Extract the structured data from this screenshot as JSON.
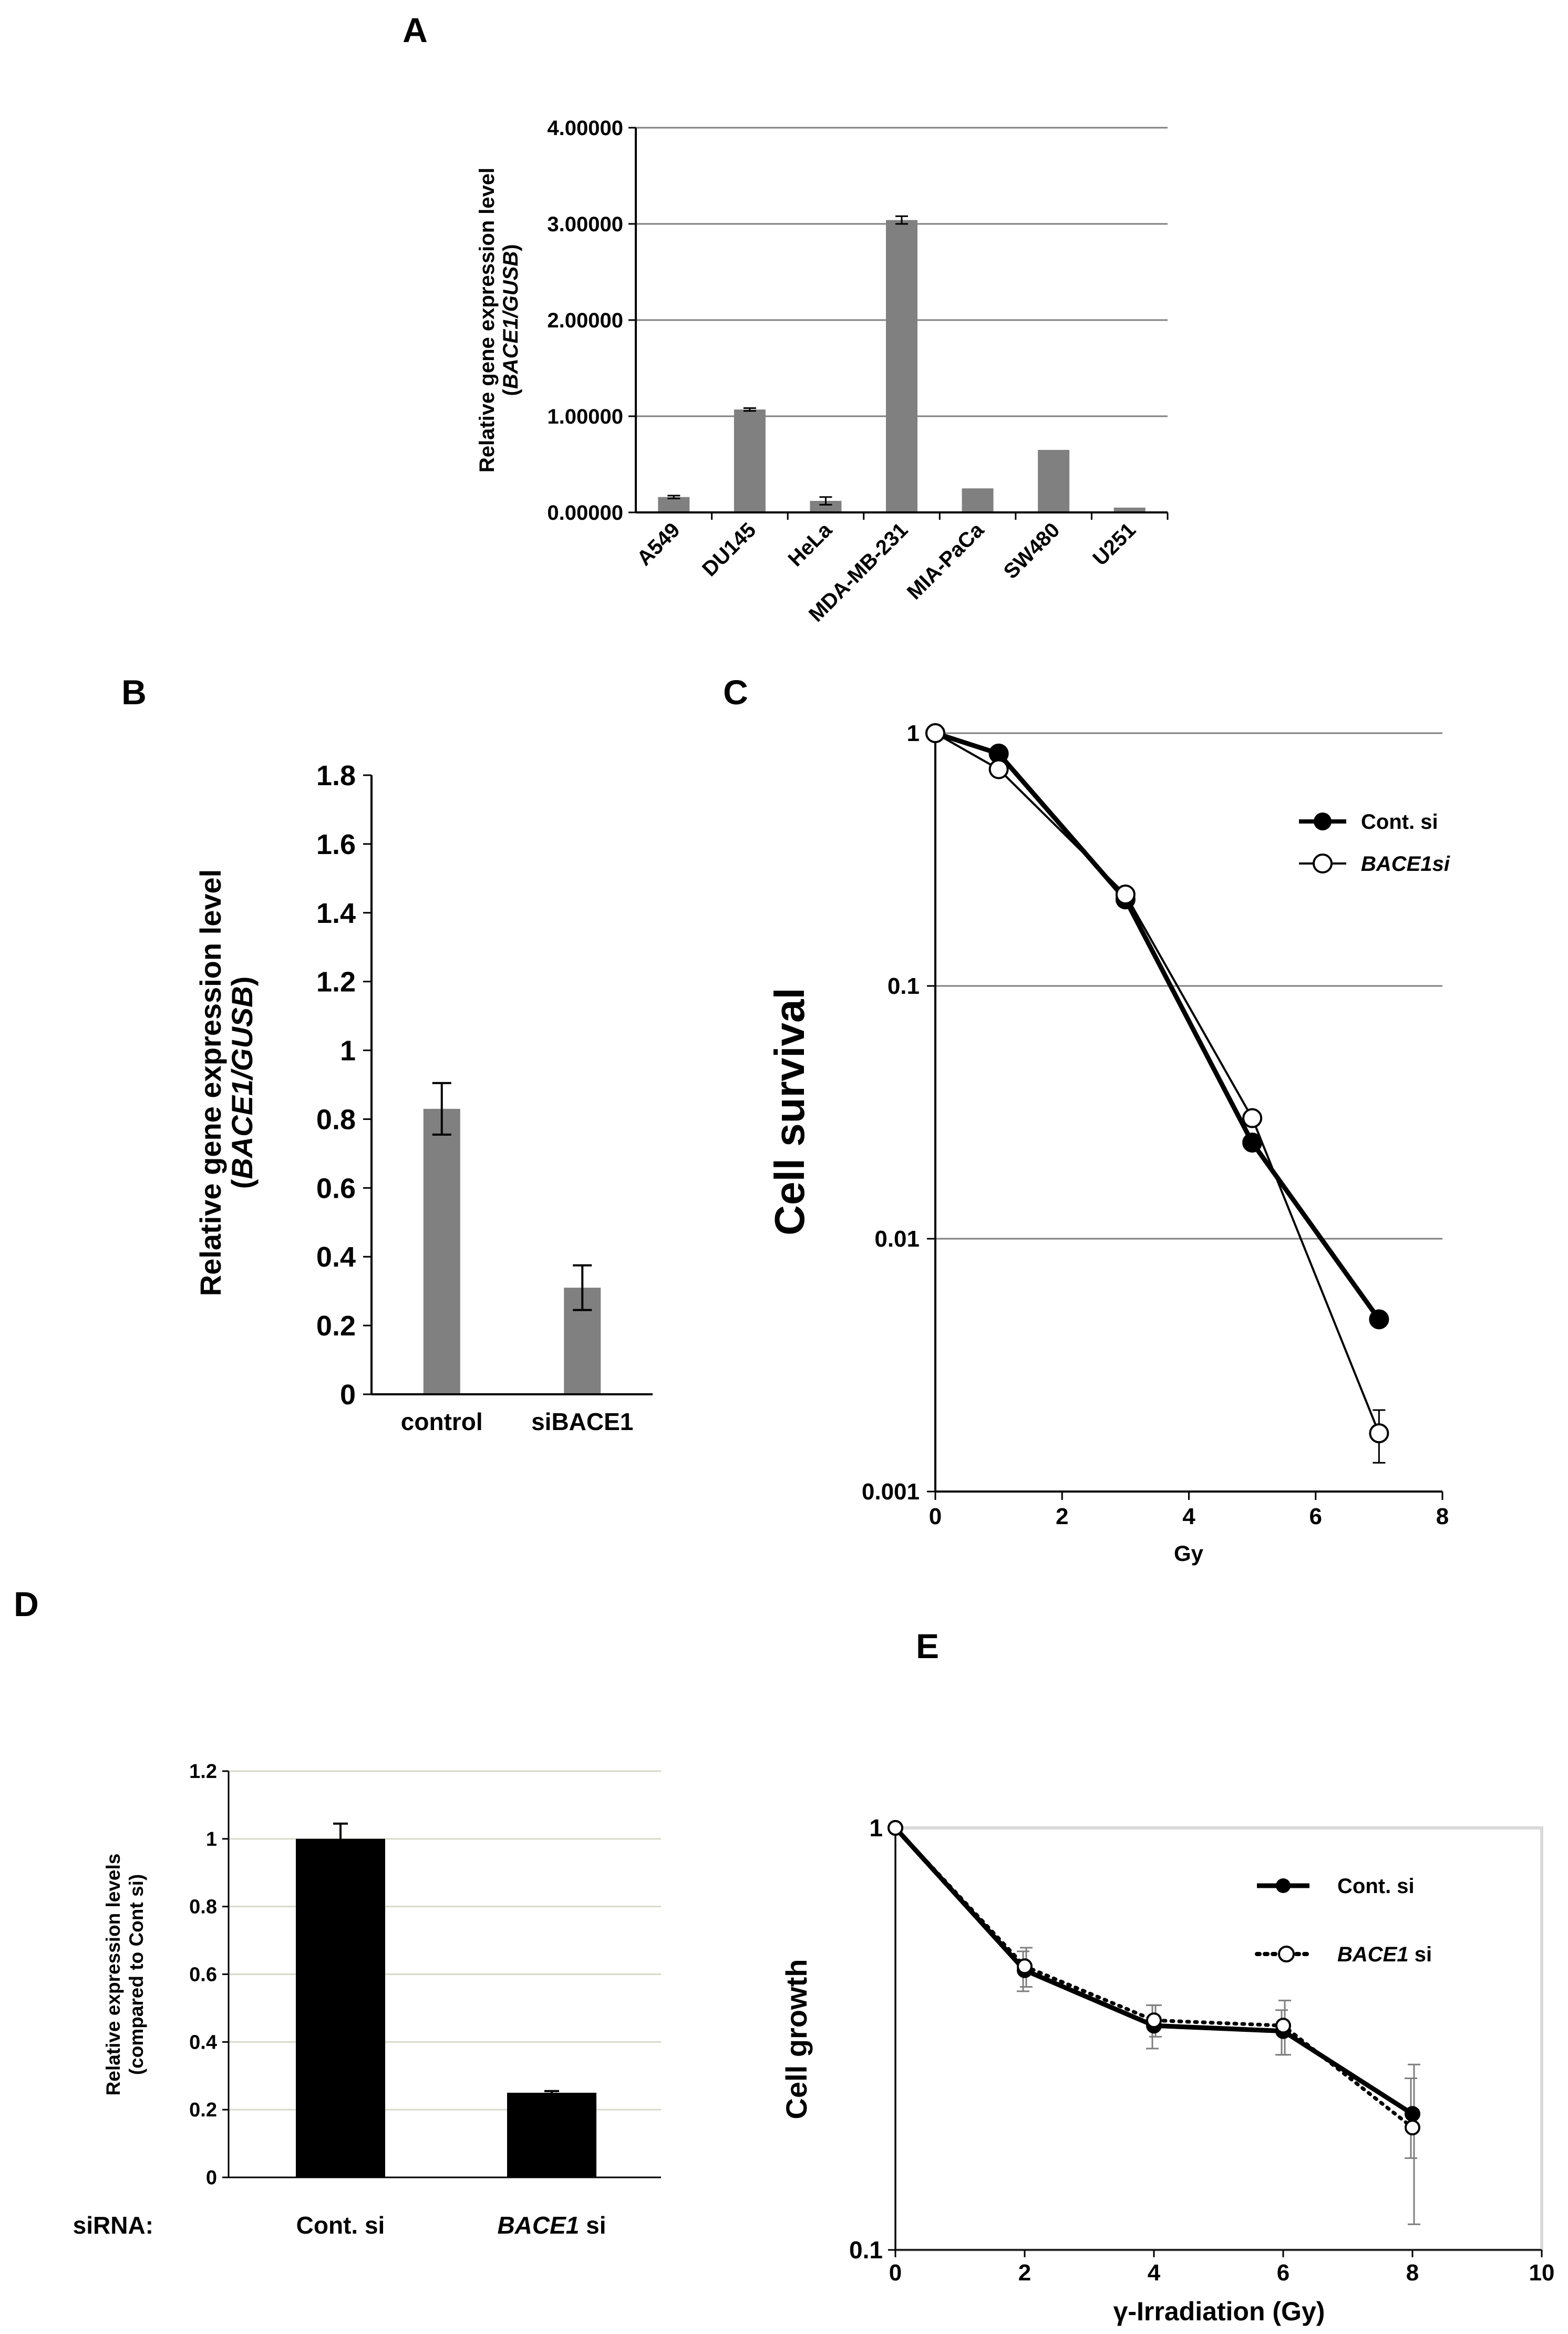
{
  "panel_labels": {
    "A": "A",
    "B": "B",
    "C": "C",
    "D": "D",
    "E": "E"
  },
  "colors": {
    "gray_bar": "#808080",
    "black": "#000000",
    "grid": "#808080",
    "grid_light": "#d9d9c8",
    "frame": "#d9d9d9",
    "error_gray": "#7f7f7f"
  },
  "chart_data": [
    {
      "panel": "A",
      "type": "bar",
      "title": "",
      "categories": [
        "A549",
        "DU145",
        "HeLa",
        "MDA-MB-231",
        "MIA-PaCa",
        "SW480",
        "U251"
      ],
      "values": [
        0.16,
        1.07,
        0.12,
        3.04,
        0.25,
        0.65,
        0.05
      ],
      "errors": [
        0.015,
        0.015,
        0.04,
        0.04,
        0,
        0,
        0
      ],
      "ylabel_line1": "Relative gene expression level",
      "ylabel_line2_open": "(",
      "ylabel_line2_italic": "BACE1/GUSB",
      "ylabel_line2_close": ")",
      "ylim": [
        0,
        4
      ],
      "yticks": [
        "0.00000",
        "1.00000",
        "2.00000",
        "3.00000",
        "4.00000"
      ],
      "grid": true
    },
    {
      "panel": "B",
      "type": "bar",
      "categories": [
        "control",
        "siBACE1"
      ],
      "values": [
        0.83,
        0.31
      ],
      "errors": [
        0.075,
        0.065
      ],
      "ylabel_line1": "Relative gene expression level",
      "ylabel_line2_open": "(",
      "ylabel_line2_italic": "BACE1/GUSB",
      "ylabel_line2_close": ")",
      "ylim": [
        0,
        1.8
      ],
      "yticks": [
        "0",
        "0.2",
        "0.4",
        "0.6",
        "0.8",
        "1",
        "1.2",
        "1.4",
        "1.6",
        "1.8"
      ],
      "grid": false
    },
    {
      "panel": "C",
      "type": "line",
      "yscale": "log",
      "xlabel": "Gy",
      "ylabel": "Cell survival",
      "xlim": [
        0,
        8
      ],
      "xticks": [
        "0",
        "2",
        "4",
        "6",
        "8"
      ],
      "ylim": [
        0.001,
        1
      ],
      "yticks": [
        "0.001",
        "0.01",
        "0.1",
        "1"
      ],
      "series": [
        {
          "name": "Cont. si",
          "x": [
            0,
            1,
            3,
            5,
            7
          ],
          "y": [
            1,
            0.83,
            0.22,
            0.024,
            0.0048
          ],
          "marker": "filled"
        },
        {
          "name": "BACE1si",
          "x": [
            0,
            1,
            3,
            5,
            7
          ],
          "y": [
            1,
            0.72,
            0.23,
            0.03,
            0.0017
          ],
          "err_y": [
            0,
            0,
            0,
            0,
            0.0004
          ],
          "marker": "open"
        }
      ],
      "legend": "top-right"
    },
    {
      "panel": "D",
      "type": "bar",
      "categories_row_label": "siRNA:",
      "categories": [
        "Cont. si",
        "BACE1 si"
      ],
      "category_italic": [
        "",
        "BACE1"
      ],
      "category_rest": [
        "Cont. si",
        " si"
      ],
      "values": [
        1.0,
        0.25
      ],
      "errors": [
        0.045,
        0.005
      ],
      "ylabel_line1": "Relative expression levels",
      "ylabel_line2": "(compared to Cont si)",
      "ylim": [
        0,
        1.2
      ],
      "yticks": [
        "0",
        "0.2",
        "0.4",
        "0.6",
        "0.8",
        "1",
        "1.2"
      ],
      "grid": true
    },
    {
      "panel": "E",
      "type": "line",
      "yscale": "log",
      "xlabel": "γ-Irradiation (Gy)",
      "ylabel": "Cell growth",
      "xlim": [
        0,
        10
      ],
      "xticks": [
        "0",
        "2",
        "4",
        "6",
        "8",
        "10"
      ],
      "ylim": [
        0.1,
        1
      ],
      "yticks": [
        "0.1",
        "1"
      ],
      "series": [
        {
          "name": "Cont. si",
          "x": [
            0,
            2,
            4,
            6,
            8
          ],
          "y": [
            1,
            0.46,
            0.34,
            0.33,
            0.21
          ],
          "err": [
            0,
            0.05,
            0.04,
            0.04,
            0.045
          ],
          "marker": "filled",
          "style": "solid"
        },
        {
          "name": "BACE1 si",
          "legend_italic": "BACE1",
          "legend_rest": " si",
          "x": [
            0,
            2,
            4,
            6,
            8
          ],
          "y": [
            1,
            0.47,
            0.35,
            0.34,
            0.195
          ],
          "err": [
            0,
            0.05,
            0.03,
            0.05,
            0.08
          ],
          "marker": "open",
          "style": "dotted"
        }
      ],
      "legend": "top-right"
    }
  ]
}
